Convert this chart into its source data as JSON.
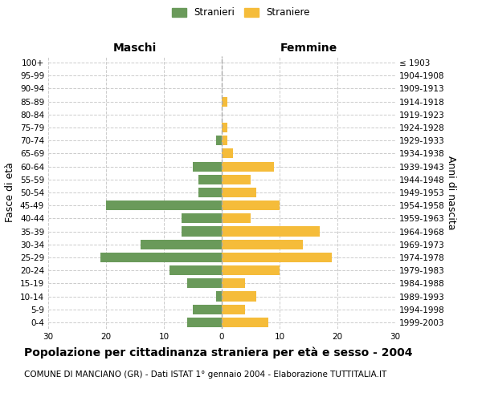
{
  "age_groups": [
    "0-4",
    "5-9",
    "10-14",
    "15-19",
    "20-24",
    "25-29",
    "30-34",
    "35-39",
    "40-44",
    "45-49",
    "50-54",
    "55-59",
    "60-64",
    "65-69",
    "70-74",
    "75-79",
    "80-84",
    "85-89",
    "90-94",
    "95-99",
    "100+"
  ],
  "birth_years": [
    "1999-2003",
    "1994-1998",
    "1989-1993",
    "1984-1988",
    "1979-1983",
    "1974-1978",
    "1969-1973",
    "1964-1968",
    "1959-1963",
    "1954-1958",
    "1949-1953",
    "1944-1948",
    "1939-1943",
    "1934-1938",
    "1929-1933",
    "1924-1928",
    "1919-1923",
    "1914-1918",
    "1909-1913",
    "1904-1908",
    "≤ 1903"
  ],
  "males": [
    6,
    5,
    1,
    6,
    9,
    21,
    14,
    7,
    7,
    20,
    4,
    4,
    5,
    0,
    1,
    0,
    0,
    0,
    0,
    0,
    0
  ],
  "females": [
    8,
    4,
    6,
    4,
    10,
    19,
    14,
    17,
    5,
    10,
    6,
    5,
    9,
    2,
    1,
    1,
    0,
    1,
    0,
    0,
    0
  ],
  "xlim": 30,
  "color_males": "#6a9a5a",
  "color_females": "#f5bc3a",
  "title": "Popolazione per cittadinanza straniera per età e sesso - 2004",
  "subtitle": "COMUNE DI MANCIANO (GR) - Dati ISTAT 1° gennaio 2004 - Elaborazione TUTTITALIA.IT",
  "legend_male": "Stranieri",
  "legend_female": "Straniere",
  "xlabel_left": "Maschi",
  "xlabel_right": "Femmine",
  "ylabel": "Fasce di età",
  "ylabel_right": "Anni di nascita",
  "grid_color": "#cccccc",
  "background_color": "#ffffff",
  "bar_height": 0.75,
  "title_fontsize": 10,
  "subtitle_fontsize": 7.5,
  "tick_fontsize": 7.5,
  "label_fontsize": 9
}
